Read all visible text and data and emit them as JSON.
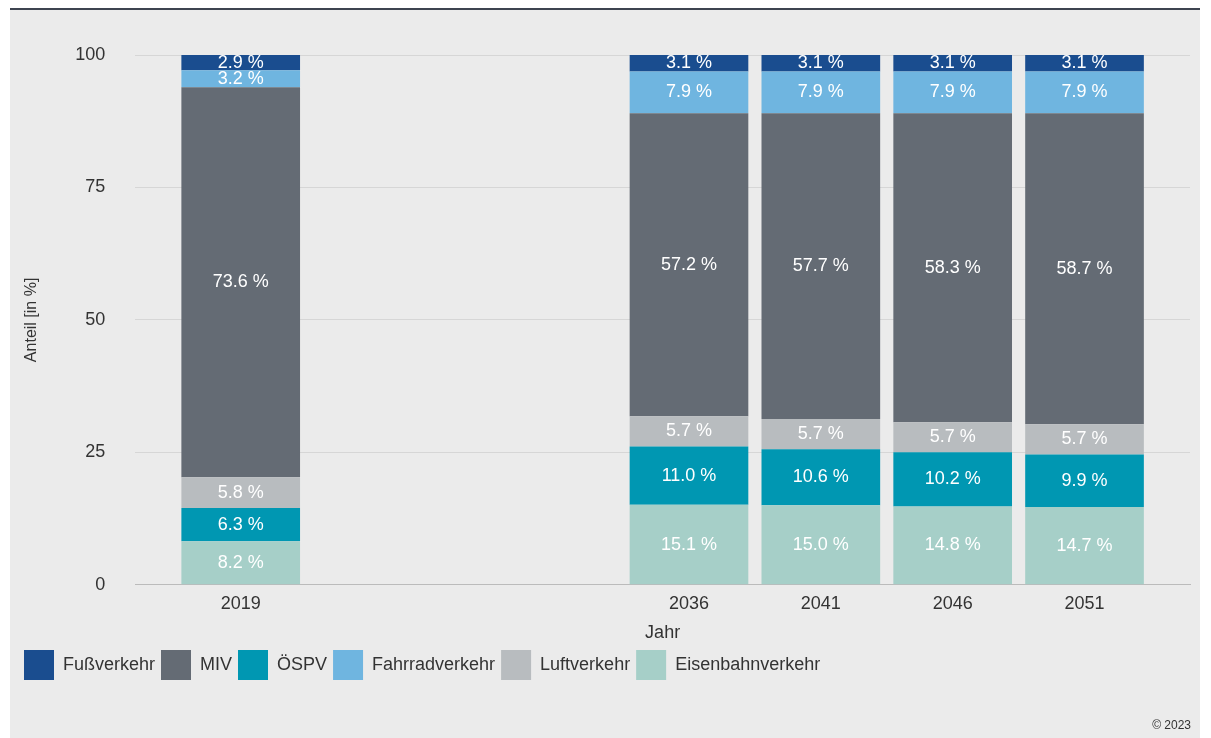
{
  "chart_data": {
    "type": "bar",
    "stacked": true,
    "x": [
      2019,
      2036,
      2041,
      2046,
      2051
    ],
    "xlim": [
      2015,
      2055
    ],
    "xticks": [
      2019,
      2036,
      2041,
      2046,
      2051
    ],
    "ylim": [
      0,
      100
    ],
    "yticks": [
      0,
      25,
      50,
      75,
      100
    ],
    "xlabel": "Jahr",
    "ylabel": "Anteil [in %]",
    "grid": "y",
    "legend": "bottom left",
    "series": [
      {
        "name": "Eisenbahnverkehr",
        "color": "#a6cfc8",
        "values": [
          8.2,
          15.1,
          15.0,
          14.8,
          14.7
        ],
        "value_labels": [
          "8.2 %",
          "15.1 %",
          "15.0 %",
          "14.8 %",
          "14.7 %"
        ]
      },
      {
        "name": "ÖSPV",
        "color": "#0097b2",
        "values": [
          6.3,
          11.0,
          10.6,
          10.2,
          9.9
        ],
        "value_labels": [
          "6.3 %",
          "11.0 %",
          "10.6 %",
          "10.2 %",
          "9.9 %"
        ]
      },
      {
        "name": "Luftverkehr",
        "color": "#b8bcbf",
        "values": [
          5.8,
          5.7,
          5.7,
          5.7,
          5.7
        ],
        "value_labels": [
          "5.8 %",
          "5.7 %",
          "5.7 %",
          "5.7 %",
          "5.7 %"
        ]
      },
      {
        "name": "MIV",
        "color": "#646b74",
        "values": [
          73.6,
          57.2,
          57.7,
          58.3,
          58.7
        ],
        "value_labels": [
          "73.6 %",
          "57.2 %",
          "57.7 %",
          "58.3 %",
          "58.7 %"
        ]
      },
      {
        "name": "Fahrradverkehr",
        "color": "#6fb5e0",
        "values": [
          3.2,
          7.9,
          7.9,
          7.9,
          7.9
        ],
        "value_labels": [
          "3.2 %",
          "7.9 %",
          "7.9 %",
          "7.9 %",
          "7.9 %"
        ]
      },
      {
        "name": "Fußverkehr",
        "color": "#1a4d8f",
        "values": [
          2.9,
          3.1,
          3.1,
          3.1,
          3.1
        ],
        "value_labels": [
          "2.9 %",
          "3.1 %",
          "3.1 %",
          "3.1 %",
          "3.1 %"
        ]
      }
    ],
    "annotations": [
      "© 2023"
    ]
  }
}
